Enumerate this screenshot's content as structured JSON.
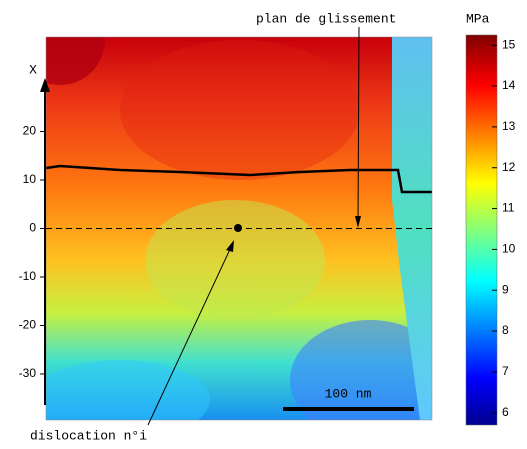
{
  "chart_data": {
    "type": "heatmap",
    "y_label": "X",
    "ylim": [
      -39.5,
      39.5
    ],
    "yticks": [
      20,
      10,
      0,
      -10,
      -20,
      -30
    ],
    "colorbar_label": "MPa",
    "clim": [
      5.7,
      15.25
    ],
    "cticks": [
      15,
      14,
      13,
      12,
      11,
      10,
      9,
      8,
      7,
      6
    ],
    "annotations": {
      "glide_plane": "plan de glissement",
      "dislocation": "dislocation n°i",
      "scale_bar": "100 nm"
    }
  }
}
